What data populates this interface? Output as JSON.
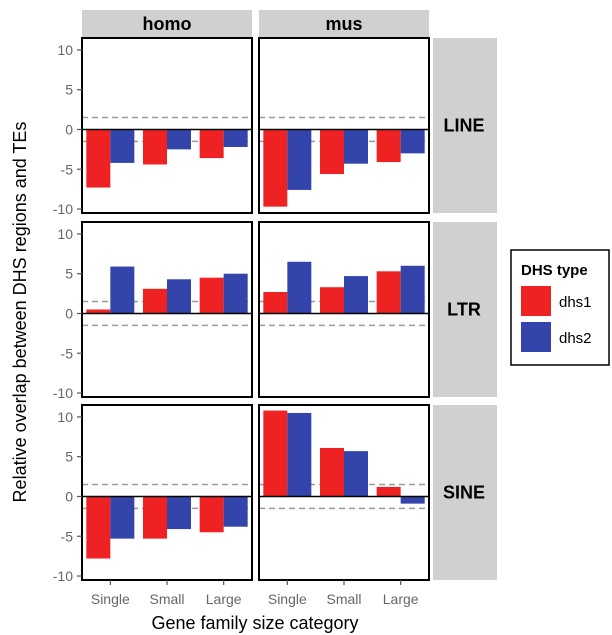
{
  "chart_data": {
    "type": "bar",
    "ylabel": "Relative overlap between DHS regions and TEs",
    "xlabel": "Gene family size category",
    "categories": [
      "Single",
      "Small",
      "Large"
    ],
    "columns": [
      "homo",
      "mus"
    ],
    "rows": [
      "LINE",
      "LTR",
      "SINE"
    ],
    "ylim": [
      -10.5,
      11.5
    ],
    "yticks": [
      -10,
      -5,
      0,
      5,
      10
    ],
    "reference_lines": [
      1.5,
      -1.5
    ],
    "legend": {
      "title": "DHS type",
      "position": "right",
      "series": [
        {
          "name": "dhs1",
          "color": "#ee2222"
        },
        {
          "name": "dhs2",
          "color": "#3344aa"
        }
      ]
    },
    "panels": [
      {
        "row": "LINE",
        "column": "homo",
        "dhs1": [
          -7.3,
          -4.4,
          -3.6
        ],
        "dhs2": [
          -4.2,
          -2.5,
          -2.2
        ]
      },
      {
        "row": "LINE",
        "column": "mus",
        "dhs1": [
          -9.7,
          -5.6,
          -4.1
        ],
        "dhs2": [
          -7.6,
          -4.3,
          -3.0
        ]
      },
      {
        "row": "LTR",
        "column": "homo",
        "dhs1": [
          0.5,
          3.1,
          4.5
        ],
        "dhs2": [
          5.9,
          4.3,
          5.0
        ]
      },
      {
        "row": "LTR",
        "column": "mus",
        "dhs1": [
          2.7,
          3.3,
          5.3
        ],
        "dhs2": [
          6.5,
          4.7,
          6.0
        ]
      },
      {
        "row": "SINE",
        "column": "homo",
        "dhs1": [
          -7.8,
          -5.3,
          -4.5
        ],
        "dhs2": [
          -5.3,
          -4.1,
          -3.8
        ]
      },
      {
        "row": "SINE",
        "column": "mus",
        "dhs1": [
          10.8,
          6.1,
          1.2
        ],
        "dhs2": [
          10.5,
          5.7,
          -0.9
        ]
      }
    ]
  }
}
